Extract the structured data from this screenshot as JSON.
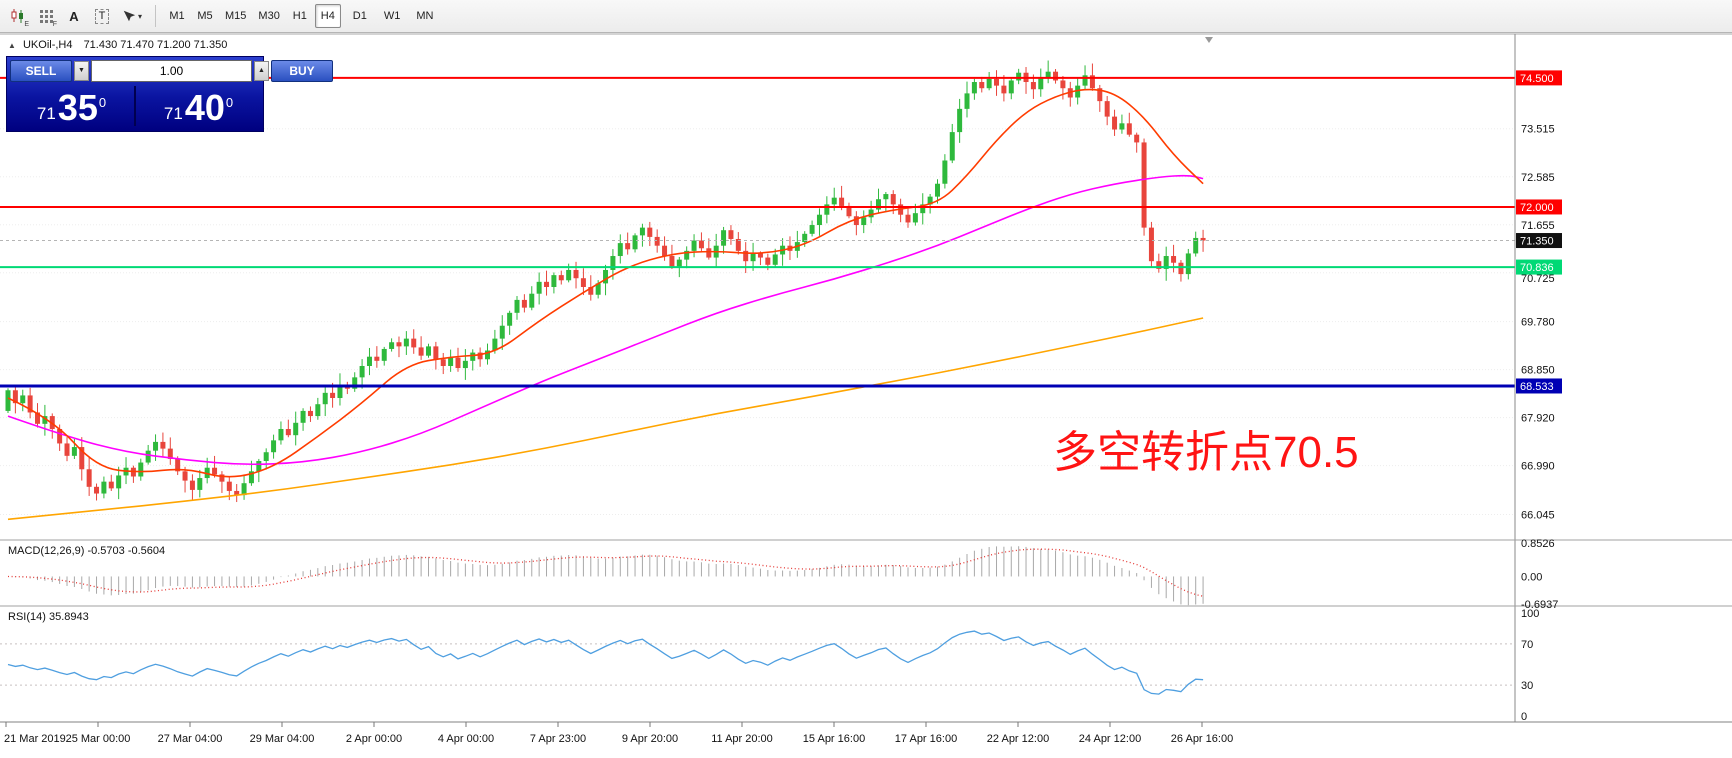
{
  "toolbar": {
    "icons": [
      "candles-icon",
      "grid-icon",
      "letter-a-icon",
      "boxed-t-icon",
      "pointer-dropdown-icon"
    ],
    "icon_sub_e": "E",
    "icon_sub_f": "F",
    "letter_a": "A",
    "letter_t": "T",
    "caret": "▾",
    "timeframes": [
      "M1",
      "M5",
      "M15",
      "M30",
      "H1",
      "H4",
      "D1",
      "W1",
      "MN"
    ],
    "active_timeframe": "H4"
  },
  "chart": {
    "panel_toggle": "▲",
    "symbol_title": "UKOil-,H4",
    "ohlc": "71.430 71.470 71.200 71.350",
    "trade_panel": {
      "sell": "SELL",
      "buy": "BUY",
      "volume": "1.00",
      "dec_glyph": "▼",
      "inc_glyph": "▲",
      "bid_main": "71",
      "bid_big": "35",
      "bid_sup": "0",
      "ask_main": "71",
      "ask_big": "40",
      "ask_sup": "0"
    },
    "annotation": {
      "text": "多空转折点70.5",
      "color": "#ff1414"
    },
    "current_price_label": "71.350",
    "levels": [
      {
        "price": 74.5,
        "label": "74.500",
        "color": "#ff0000",
        "width": 2
      },
      {
        "price": 72.0,
        "label": "72.000",
        "color": "#ff0000",
        "width": 2
      },
      {
        "price": 70.836,
        "label": "70.836",
        "color": "#00d975",
        "width": 2
      },
      {
        "price": 68.533,
        "label": "68.533",
        "color": "#0000b4",
        "width": 3
      }
    ],
    "axis_ticks": [
      73.515,
      72.585,
      71.655,
      70.725,
      69.78,
      68.85,
      67.92,
      66.99,
      66.045
    ]
  },
  "macd_panel": {
    "label": "MACD(12,26,9) -0.5703 -0.5604",
    "axis_labels": [
      "0.8526",
      "0.00",
      "-0.6937"
    ],
    "axis_values": [
      0.8526,
      0,
      -0.6937
    ]
  },
  "rsi_panel": {
    "label": "RSI(14) 35.8943",
    "axis_labels": [
      "100",
      "70",
      "30",
      "0"
    ],
    "axis_values": [
      100,
      70,
      30,
      0
    ],
    "levels": [
      70,
      30
    ]
  },
  "time_axis": [
    "21 Mar 2019",
    "25 Mar 00:00",
    "27 Mar 04:00",
    "29 Mar 04:00",
    "2 Apr 00:00",
    "4 Apr 00:00",
    "7 Apr 23:00",
    "9 Apr 20:00",
    "11 Apr 20:00",
    "15 Apr 16:00",
    "17 Apr 16:00",
    "22 Apr 12:00",
    "24 Apr 12:00",
    "26 Apr 16:00"
  ],
  "chart_data": {
    "type": "candlestick",
    "symbol": "UKOil-",
    "timeframe": "H4",
    "title": "UKOil-,H4 71.430 71.470 71.200 71.350",
    "price_range": [
      65.55,
      75.35
    ],
    "first_open": 68.05,
    "closes": [
      68.45,
      68.2,
      68.35,
      68.02,
      67.8,
      67.95,
      67.7,
      67.42,
      67.18,
      67.35,
      66.92,
      66.58,
      66.45,
      66.68,
      66.55,
      66.8,
      66.95,
      66.78,
      67.05,
      67.28,
      67.45,
      67.32,
      67.12,
      66.88,
      66.7,
      66.52,
      66.75,
      66.95,
      66.82,
      66.68,
      66.5,
      66.42,
      66.65,
      66.88,
      67.08,
      67.25,
      67.48,
      67.7,
      67.58,
      67.82,
      68.05,
      67.95,
      68.18,
      68.4,
      68.3,
      68.55,
      68.48,
      68.7,
      68.92,
      69.1,
      69.02,
      69.25,
      69.38,
      69.3,
      69.45,
      69.28,
      69.12,
      69.3,
      69.05,
      68.92,
      69.08,
      68.88,
      69.02,
      69.18,
      69.05,
      69.22,
      69.45,
      69.7,
      69.95,
      70.2,
      70.05,
      70.32,
      70.55,
      70.45,
      70.68,
      70.58,
      70.78,
      70.62,
      70.45,
      70.3,
      70.52,
      70.78,
      71.05,
      71.3,
      71.18,
      71.45,
      71.6,
      71.42,
      71.25,
      71.05,
      70.85,
      70.98,
      71.15,
      71.35,
      71.2,
      71.02,
      71.25,
      71.55,
      71.38,
      71.15,
      70.95,
      71.1,
      71.02,
      70.88,
      71.08,
      71.25,
      71.15,
      71.32,
      71.48,
      71.65,
      71.85,
      72.05,
      72.18,
      72.02,
      71.82,
      71.65,
      71.8,
      71.95,
      72.15,
      72.25,
      72.05,
      71.85,
      71.7,
      71.88,
      72.05,
      72.2,
      72.45,
      72.9,
      73.45,
      73.9,
      74.2,
      74.42,
      74.3,
      74.48,
      74.35,
      74.2,
      74.45,
      74.6,
      74.42,
      74.28,
      74.5,
      74.62,
      74.45,
      74.3,
      74.12,
      74.35,
      74.55,
      74.3,
      74.05,
      73.75,
      73.5,
      73.62,
      73.4,
      73.25,
      71.6,
      70.95,
      70.8,
      71.05,
      70.92,
      70.7,
      71.1,
      71.4,
      71.35
    ],
    "up_color": "#2eb93c",
    "down_color": "#e8453c",
    "ma_fast": {
      "color": "#ff3c00",
      "points": [
        [
          0,
          68.3
        ],
        [
          6,
          67.9
        ],
        [
          12,
          66.95
        ],
        [
          18,
          66.85
        ],
        [
          24,
          66.95
        ],
        [
          30,
          66.72
        ],
        [
          36,
          66.95
        ],
        [
          42,
          67.55
        ],
        [
          48,
          68.2
        ],
        [
          54,
          68.95
        ],
        [
          60,
          69.1
        ],
        [
          66,
          69.15
        ],
        [
          72,
          69.8
        ],
        [
          78,
          70.35
        ],
        [
          84,
          70.85
        ],
        [
          90,
          71.1
        ],
        [
          96,
          71.15
        ],
        [
          102,
          71.08
        ],
        [
          108,
          71.25
        ],
        [
          114,
          71.75
        ],
        [
          120,
          71.95
        ],
        [
          126,
          72.05
        ],
        [
          130,
          72.6
        ],
        [
          134,
          73.3
        ],
        [
          138,
          73.85
        ],
        [
          142,
          74.15
        ],
        [
          146,
          74.3
        ],
        [
          150,
          74.22
        ],
        [
          154,
          73.75
        ],
        [
          158,
          73.0
        ],
        [
          162,
          72.45
        ]
      ]
    },
    "ma_mid": {
      "color": "#ff00ff",
      "points": [
        [
          0,
          67.95
        ],
        [
          8,
          67.55
        ],
        [
          16,
          67.25
        ],
        [
          24,
          67.1
        ],
        [
          32,
          67.0
        ],
        [
          40,
          67.05
        ],
        [
          48,
          67.25
        ],
        [
          56,
          67.6
        ],
        [
          64,
          68.1
        ],
        [
          72,
          68.6
        ],
        [
          80,
          69.05
        ],
        [
          88,
          69.5
        ],
        [
          96,
          69.95
        ],
        [
          104,
          70.3
        ],
        [
          112,
          70.6
        ],
        [
          120,
          70.95
        ],
        [
          126,
          71.25
        ],
        [
          132,
          71.6
        ],
        [
          138,
          71.95
        ],
        [
          144,
          72.25
        ],
        [
          150,
          72.45
        ],
        [
          156,
          72.58
        ],
        [
          160,
          72.62
        ],
        [
          162,
          72.55
        ]
      ]
    },
    "ma_slow": {
      "color": "#ffa500",
      "points": [
        [
          0,
          65.95
        ],
        [
          12,
          66.12
        ],
        [
          24,
          66.3
        ],
        [
          36,
          66.5
        ],
        [
          48,
          66.75
        ],
        [
          60,
          67.0
        ],
        [
          72,
          67.3
        ],
        [
          84,
          67.65
        ],
        [
          96,
          68.0
        ],
        [
          108,
          68.3
        ],
        [
          120,
          68.62
        ],
        [
          132,
          68.95
        ],
        [
          144,
          69.3
        ],
        [
          154,
          69.6
        ],
        [
          162,
          69.85
        ]
      ]
    },
    "macd": {
      "histogram_color": "#a8a8a8",
      "signal_color": "#e53935",
      "range": [
        -0.75,
        0.9
      ]
    },
    "rsi": {
      "color": "#4f9fe0",
      "range": [
        0,
        100
      ]
    }
  }
}
